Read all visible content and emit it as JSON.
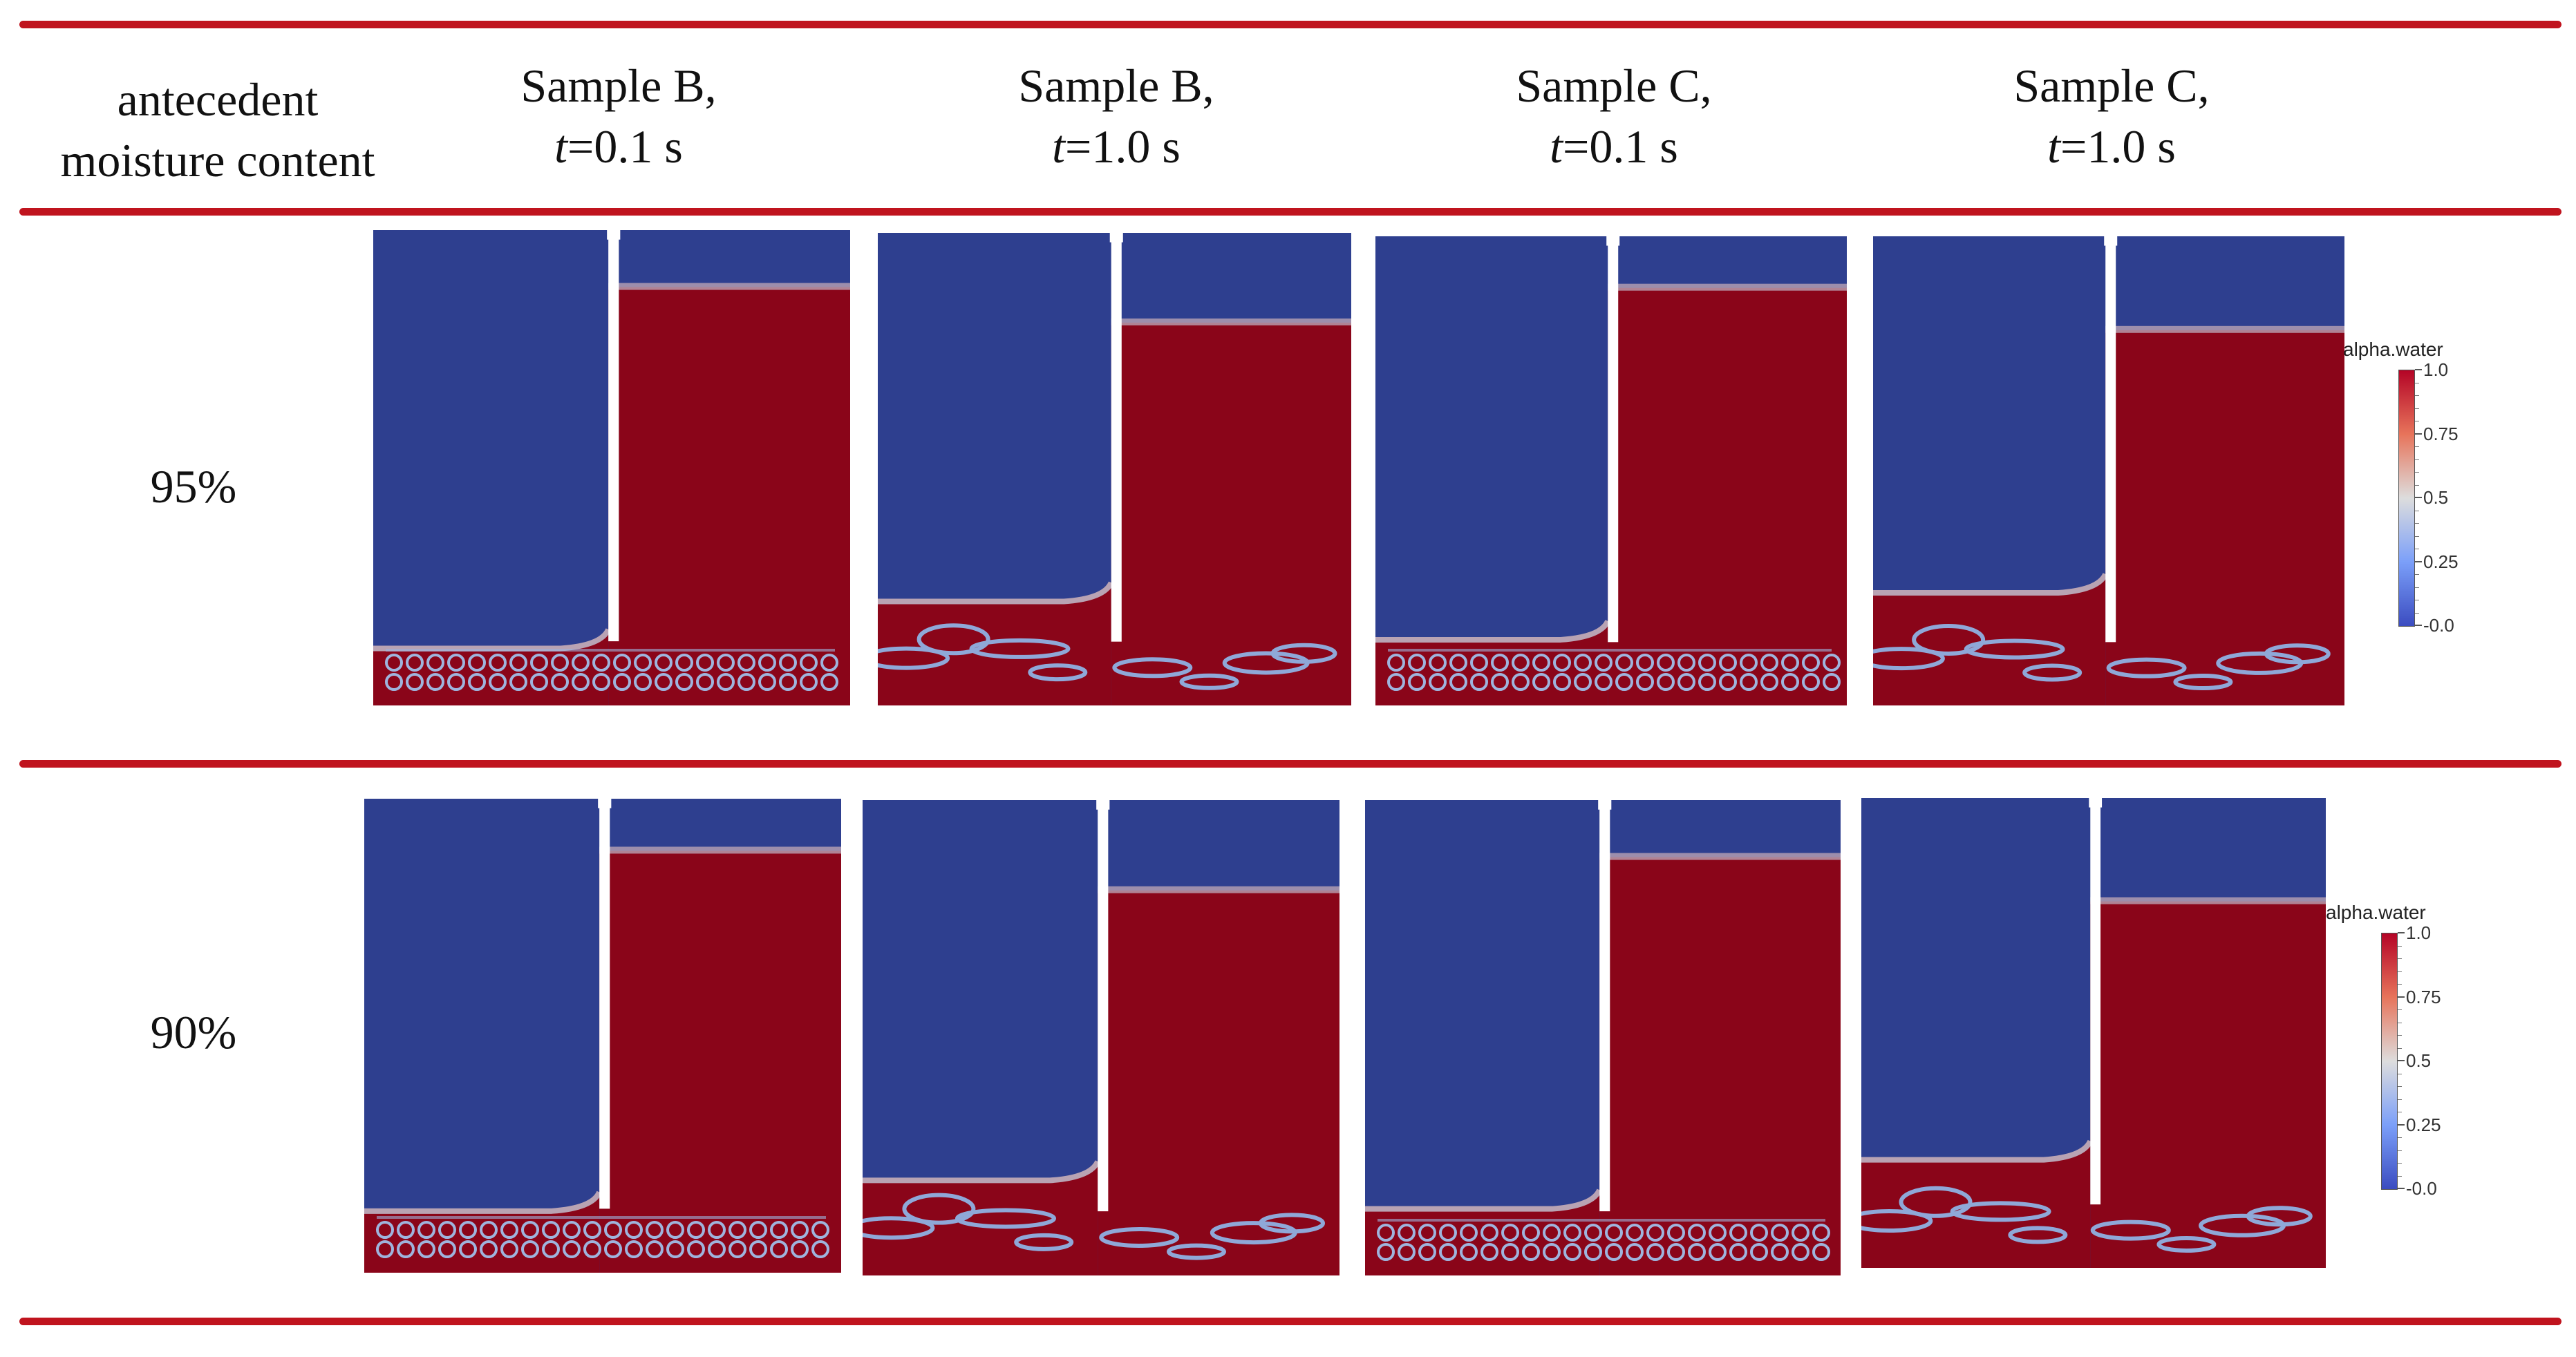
{
  "colors": {
    "rule": "#c0141e",
    "air": "#2e3f8f",
    "water": "#8a0519",
    "white": "#ffffff"
  },
  "header": {
    "row_label_header": {
      "line1": "antecedent",
      "line2": "moisture content"
    },
    "columns": [
      {
        "line1": "Sample B,",
        "t_var": "t",
        "t_val": "=0.1 s"
      },
      {
        "line1": "Sample B,",
        "t_var": "t",
        "t_val": "=1.0 s"
      },
      {
        "line1": "Sample C,",
        "t_var": "t",
        "t_val": "=0.1 s"
      },
      {
        "line1": "Sample C,",
        "t_var": "t",
        "t_val": "=1.0 s"
      }
    ]
  },
  "rows": [
    {
      "label": "95%"
    },
    {
      "label": "90%"
    }
  ],
  "colorbar": {
    "title": "alpha.water",
    "ticks": [
      "1.0",
      "0.75",
      "0.5",
      "0.25",
      "-0.0"
    ]
  },
  "panels": [
    {
      "row": 0,
      "col": 0,
      "water_level": 0.12,
      "sediment_level": 0.88,
      "pattern": "dense"
    },
    {
      "row": 0,
      "col": 1,
      "water_level": 0.19,
      "sediment_level": 0.78,
      "pattern": "eroded"
    },
    {
      "row": 0,
      "col": 2,
      "water_level": 0.11,
      "sediment_level": 0.86,
      "pattern": "dense"
    },
    {
      "row": 0,
      "col": 3,
      "water_level": 0.2,
      "sediment_level": 0.76,
      "pattern": "eroded"
    },
    {
      "row": 1,
      "col": 0,
      "water_level": 0.11,
      "sediment_level": 0.87,
      "pattern": "dense"
    },
    {
      "row": 1,
      "col": 1,
      "water_level": 0.19,
      "sediment_level": 0.8,
      "pattern": "eroded"
    },
    {
      "row": 1,
      "col": 2,
      "water_level": 0.12,
      "sediment_level": 0.86,
      "pattern": "dense"
    },
    {
      "row": 1,
      "col": 3,
      "water_level": 0.22,
      "sediment_level": 0.77,
      "pattern": "eroded"
    }
  ]
}
